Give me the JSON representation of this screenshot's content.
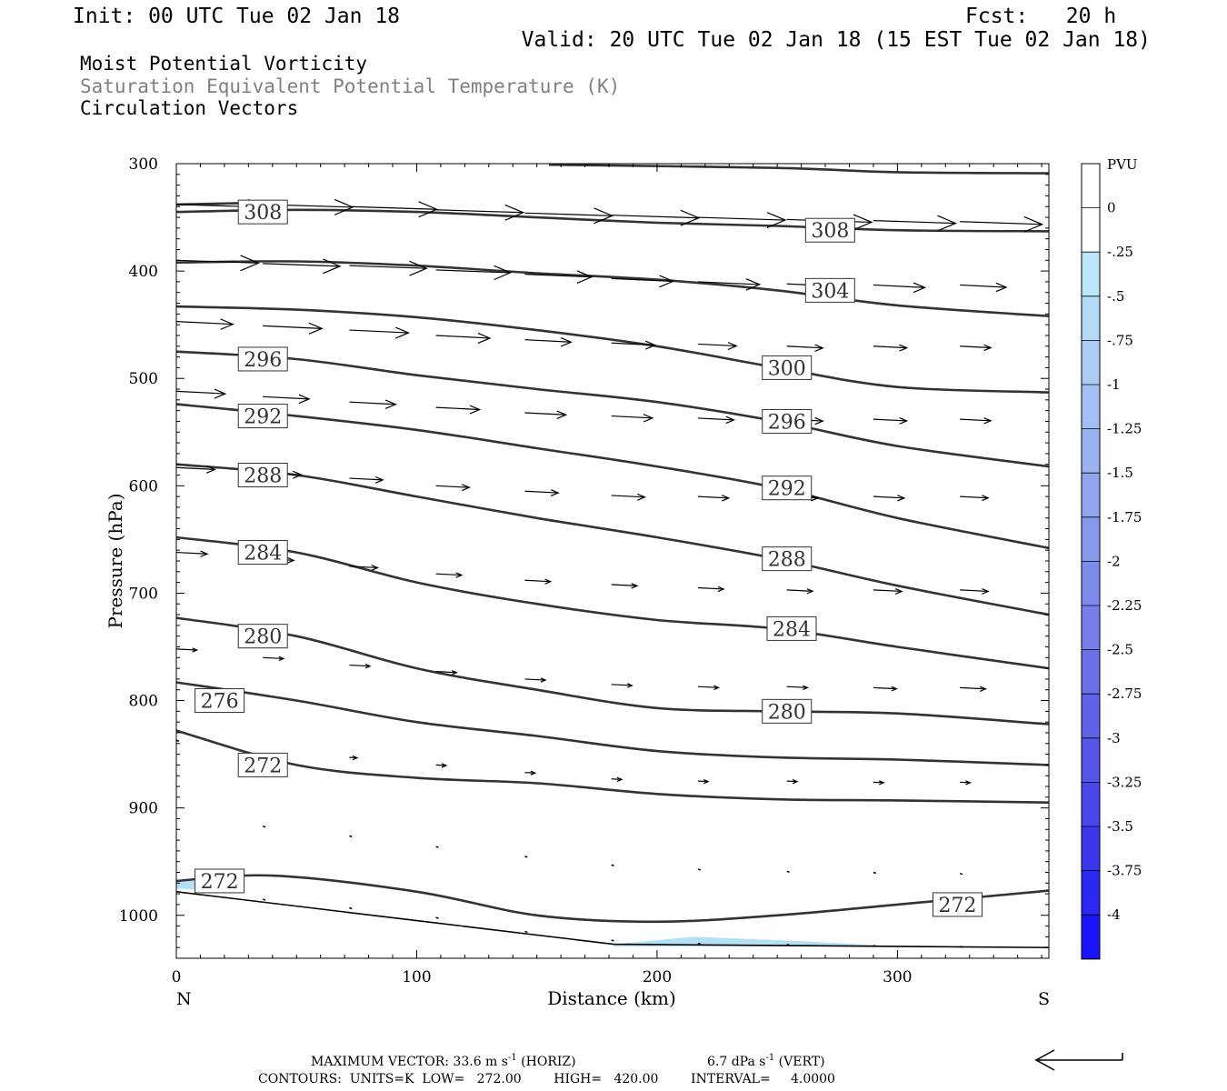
{
  "header": {
    "init": "Init: 00 UTC Tue 02 Jan 18",
    "fcst": "Fcst:   20 h",
    "valid": "Valid: 20 UTC Tue 02 Jan 18 (15 EST Tue 02 Jan 18)",
    "fields": [
      "Moist Potential Vorticity",
      "Saturation Equivalent Potential Temperature (K)",
      "Circulation Vectors"
    ]
  },
  "colors": {
    "contour": "#333333",
    "field_gray": "#808080",
    "light_blue": "#b3e0f7"
  },
  "footer": {
    "max_vector": "MAXIMUM VECTOR:  33.6 m s",
    "horiz": " (HORIZ)",
    "vert_val": "6.7 dPa s",
    "vert": " (VERT)",
    "neg1": "-1",
    "contours": "CONTOURS:  UNITS=K  LOW=   272.00        HIGH=   420.00        INTERVAL=     4.0000"
  },
  "chart_data": {
    "type": "contour",
    "xlabel": "Distance (km)",
    "ylabel": "Pressure (hPa)",
    "xlim": [
      0,
      363
    ],
    "ylim": [
      300,
      1040
    ],
    "x_ticks": [
      0,
      100,
      200,
      300
    ],
    "y_ticks": [
      300,
      400,
      500,
      600,
      700,
      800,
      900,
      1000
    ],
    "x_end_labels": [
      "N",
      "S"
    ],
    "colorbar": {
      "title": "PVU",
      "labels": [
        "0",
        "-.25",
        "-.5",
        "-.75",
        "-1",
        "-1.25",
        "-1.5",
        "-1.75",
        "-2",
        "-2.25",
        "-2.5",
        "-2.75",
        "-3",
        "-3.25",
        "-3.5",
        "-3.75",
        "-4"
      ],
      "colors": [
        "#ffffff",
        "#ffffff",
        "#bce6f9",
        "#b4d9f7",
        "#acccf5",
        "#a3bff3",
        "#9ab2f1",
        "#91a5ef",
        "#8898ed",
        "#7f8bec",
        "#767eea",
        "#6c70e9",
        "#6262e9",
        "#5755ea",
        "#4a46ec",
        "#3b37ef",
        "#2c28f2",
        "#1a15f8"
      ]
    },
    "terrain": [
      [
        0,
        978
      ],
      [
        182,
        1027
      ],
      [
        363,
        1030
      ]
    ],
    "contours": [
      {
        "label": "308",
        "points": [
          [
            0,
            345
          ],
          [
            50,
            343
          ],
          [
            100,
            345
          ],
          [
            150,
            350
          ],
          [
            200,
            355
          ],
          [
            250,
            358
          ],
          [
            300,
            362
          ],
          [
            363,
            363
          ]
        ],
        "label_at": [
          [
            36,
            345
          ],
          [
            272,
            362
          ]
        ]
      },
      {
        "label": "308",
        "points": [
          [
            0,
            338
          ],
          [
            45,
            336
          ]
        ]
      },
      {
        "label": "",
        "points": [
          [
            155,
            301
          ],
          [
            250,
            304
          ],
          [
            300,
            308
          ],
          [
            363,
            309
          ]
        ]
      },
      {
        "label": "304",
        "points": [
          [
            0,
            392
          ],
          [
            50,
            391
          ],
          [
            100,
            395
          ],
          [
            150,
            402
          ],
          [
            200,
            408
          ],
          [
            250,
            418
          ],
          [
            300,
            432
          ],
          [
            363,
            442
          ]
        ],
        "label_at": [
          [
            272,
            418
          ]
        ]
      },
      {
        "label": "300",
        "points": [
          [
            0,
            433
          ],
          [
            50,
            436
          ],
          [
            100,
            443
          ],
          [
            150,
            455
          ],
          [
            200,
            470
          ],
          [
            250,
            490
          ],
          [
            300,
            508
          ],
          [
            363,
            513
          ]
        ],
        "label_at": [
          [
            254,
            490
          ]
        ]
      },
      {
        "label": "296",
        "points": [
          [
            0,
            475
          ],
          [
            50,
            482
          ],
          [
            100,
            497
          ],
          [
            150,
            510
          ],
          [
            200,
            522
          ],
          [
            250,
            540
          ],
          [
            300,
            563
          ],
          [
            363,
            582
          ]
        ],
        "label_at": [
          [
            36,
            482
          ],
          [
            254,
            540
          ]
        ]
      },
      {
        "label": "292",
        "points": [
          [
            0,
            524
          ],
          [
            50,
            535
          ],
          [
            100,
            548
          ],
          [
            150,
            565
          ],
          [
            200,
            582
          ],
          [
            250,
            602
          ],
          [
            300,
            630
          ],
          [
            363,
            658
          ]
        ],
        "label_at": [
          [
            36,
            535
          ],
          [
            254,
            602
          ]
        ]
      },
      {
        "label": "288",
        "points": [
          [
            0,
            580
          ],
          [
            50,
            590
          ],
          [
            100,
            610
          ],
          [
            150,
            630
          ],
          [
            200,
            648
          ],
          [
            250,
            668
          ],
          [
            300,
            693
          ],
          [
            363,
            720
          ]
        ],
        "label_at": [
          [
            36,
            590
          ],
          [
            254,
            668
          ]
        ]
      },
      {
        "label": "284",
        "points": [
          [
            0,
            648
          ],
          [
            50,
            662
          ],
          [
            100,
            690
          ],
          [
            150,
            710
          ],
          [
            200,
            725
          ],
          [
            250,
            733
          ],
          [
            300,
            750
          ],
          [
            363,
            770
          ]
        ],
        "label_at": [
          [
            36,
            662
          ],
          [
            256,
            733
          ]
        ]
      },
      {
        "label": "280",
        "points": [
          [
            0,
            723
          ],
          [
            50,
            740
          ],
          [
            100,
            770
          ],
          [
            150,
            790
          ],
          [
            200,
            807
          ],
          [
            250,
            810
          ],
          [
            300,
            812
          ],
          [
            363,
            822
          ]
        ],
        "label_at": [
          [
            36,
            740
          ],
          [
            254,
            810
          ]
        ]
      },
      {
        "label": "276",
        "points": [
          [
            0,
            783
          ],
          [
            50,
            800
          ],
          [
            100,
            820
          ],
          [
            150,
            833
          ],
          [
            200,
            847
          ],
          [
            250,
            853
          ],
          [
            300,
            855
          ],
          [
            363,
            860
          ]
        ],
        "label_at": [
          [
            18,
            800
          ]
        ]
      },
      {
        "label": "272",
        "points": [
          [
            0,
            828
          ],
          [
            50,
            860
          ],
          [
            100,
            872
          ],
          [
            150,
            877
          ],
          [
            200,
            887
          ],
          [
            250,
            892
          ],
          [
            300,
            893
          ],
          [
            363,
            895
          ]
        ],
        "label_at": [
          [
            36,
            860
          ]
        ]
      },
      {
        "label": "272",
        "points": [
          [
            0,
            968
          ],
          [
            40,
            963
          ],
          [
            100,
            978
          ],
          [
            150,
            1000
          ],
          [
            200,
            1006
          ],
          [
            250,
            1000
          ],
          [
            300,
            990
          ],
          [
            363,
            977
          ]
        ],
        "label_at": [
          [
            18,
            968
          ],
          [
            325,
            990
          ]
        ]
      }
    ],
    "shaded_regions": [
      {
        "value": "-.25 to -.5",
        "points": [
          [
            0,
            967
          ],
          [
            20,
            970
          ],
          [
            25,
            978
          ],
          [
            0,
            975
          ]
        ]
      },
      {
        "value": "-.25 to -.5",
        "points": [
          [
            182,
            1027
          ],
          [
            215,
            1020
          ],
          [
            260,
            1024
          ],
          [
            300,
            1029
          ],
          [
            182,
            1029
          ]
        ]
      }
    ],
    "vector_scale_ms": 33.6,
    "vectors": [
      {
        "x": 0,
        "p": 338,
        "u": 35
      },
      {
        "x": 36,
        "p": 338,
        "u": 35
      },
      {
        "x": 72,
        "p": 340,
        "u": 34
      },
      {
        "x": 108,
        "p": 343,
        "u": 34
      },
      {
        "x": 145,
        "p": 346,
        "u": 34
      },
      {
        "x": 181,
        "p": 348,
        "u": 34
      },
      {
        "x": 217,
        "p": 350,
        "u": 34
      },
      {
        "x": 254,
        "p": 352,
        "u": 33
      },
      {
        "x": 290,
        "p": 353,
        "u": 32
      },
      {
        "x": 326,
        "p": 354,
        "u": 32
      },
      {
        "x": 0,
        "p": 390,
        "u": 32
      },
      {
        "x": 36,
        "p": 393,
        "u": 30
      },
      {
        "x": 72,
        "p": 395,
        "u": 30
      },
      {
        "x": 108,
        "p": 399,
        "u": 29
      },
      {
        "x": 145,
        "p": 403,
        "u": 26
      },
      {
        "x": 181,
        "p": 407,
        "u": 24
      },
      {
        "x": 217,
        "p": 410,
        "u": 24
      },
      {
        "x": 254,
        "p": 412,
        "u": 23
      },
      {
        "x": 290,
        "p": 413,
        "u": 20
      },
      {
        "x": 326,
        "p": 413,
        "u": 18
      },
      {
        "x": 0,
        "p": 447,
        "u": 22
      },
      {
        "x": 36,
        "p": 451,
        "u": 23
      },
      {
        "x": 72,
        "p": 455,
        "u": 23
      },
      {
        "x": 108,
        "p": 460,
        "u": 21
      },
      {
        "x": 145,
        "p": 464,
        "u": 18
      },
      {
        "x": 181,
        "p": 467,
        "u": 17
      },
      {
        "x": 217,
        "p": 468,
        "u": 15
      },
      {
        "x": 254,
        "p": 470,
        "u": 14
      },
      {
        "x": 290,
        "p": 470,
        "u": 13
      },
      {
        "x": 326,
        "p": 470,
        "u": 12
      },
      {
        "x": 0,
        "p": 512,
        "u": 19
      },
      {
        "x": 36,
        "p": 517,
        "u": 18
      },
      {
        "x": 72,
        "p": 522,
        "u": 18
      },
      {
        "x": 108,
        "p": 527,
        "u": 17
      },
      {
        "x": 145,
        "p": 532,
        "u": 16
      },
      {
        "x": 181,
        "p": 535,
        "u": 16
      },
      {
        "x": 217,
        "p": 537,
        "u": 14
      },
      {
        "x": 254,
        "p": 538,
        "u": 14
      },
      {
        "x": 290,
        "p": 538,
        "u": 13
      },
      {
        "x": 326,
        "p": 538,
        "u": 12
      },
      {
        "x": 0,
        "p": 583,
        "u": 15
      },
      {
        "x": 36,
        "p": 588,
        "u": 15
      },
      {
        "x": 72,
        "p": 593,
        "u": 13
      },
      {
        "x": 108,
        "p": 600,
        "u": 13
      },
      {
        "x": 145,
        "p": 605,
        "u": 13
      },
      {
        "x": 181,
        "p": 609,
        "u": 13
      },
      {
        "x": 217,
        "p": 610,
        "u": 12
      },
      {
        "x": 254,
        "p": 610,
        "u": 12
      },
      {
        "x": 290,
        "p": 610,
        "u": 12
      },
      {
        "x": 326,
        "p": 610,
        "u": 11
      },
      {
        "x": 0,
        "p": 662,
        "u": 12
      },
      {
        "x": 36,
        "p": 668,
        "u": 12
      },
      {
        "x": 72,
        "p": 675,
        "u": 11
      },
      {
        "x": 108,
        "p": 682,
        "u": 10
      },
      {
        "x": 145,
        "p": 688,
        "u": 10
      },
      {
        "x": 181,
        "p": 692,
        "u": 10
      },
      {
        "x": 217,
        "p": 695,
        "u": 10
      },
      {
        "x": 254,
        "p": 697,
        "u": 10
      },
      {
        "x": 290,
        "p": 697,
        "u": 11
      },
      {
        "x": 326,
        "p": 697,
        "u": 11
      },
      {
        "x": 0,
        "p": 752,
        "u": 8
      },
      {
        "x": 36,
        "p": 760,
        "u": 8
      },
      {
        "x": 72,
        "p": 767,
        "u": 8
      },
      {
        "x": 108,
        "p": 773,
        "u": 8
      },
      {
        "x": 145,
        "p": 780,
        "u": 8
      },
      {
        "x": 181,
        "p": 785,
        "u": 8
      },
      {
        "x": 217,
        "p": 787,
        "u": 8
      },
      {
        "x": 254,
        "p": 787,
        "u": 8
      },
      {
        "x": 290,
        "p": 788,
        "u": 9
      },
      {
        "x": 326,
        "p": 788,
        "u": 10
      },
      {
        "x": 0,
        "p": 837,
        "u": 1
      },
      {
        "x": 72,
        "p": 853,
        "u": 3
      },
      {
        "x": 108,
        "p": 860,
        "u": 4
      },
      {
        "x": 145,
        "p": 867,
        "u": 4
      },
      {
        "x": 181,
        "p": 873,
        "u": 4
      },
      {
        "x": 217,
        "p": 875,
        "u": 4
      },
      {
        "x": 254,
        "p": 875,
        "u": 4
      },
      {
        "x": 290,
        "p": 876,
        "u": 4
      },
      {
        "x": 326,
        "p": 876,
        "u": 4
      },
      {
        "x": 36,
        "p": 917,
        "u": 1
      },
      {
        "x": 72,
        "p": 926,
        "u": 1
      },
      {
        "x": 108,
        "p": 936,
        "u": 1
      },
      {
        "x": 145,
        "p": 945,
        "u": 1
      },
      {
        "x": 181,
        "p": 953,
        "u": 1
      },
      {
        "x": 217,
        "p": 957,
        "u": 1
      },
      {
        "x": 254,
        "p": 959,
        "u": 1
      },
      {
        "x": 290,
        "p": 960,
        "u": 1
      },
      {
        "x": 326,
        "p": 961,
        "u": 1
      },
      {
        "x": 36,
        "p": 985,
        "u": 1
      },
      {
        "x": 72,
        "p": 993,
        "u": 1
      },
      {
        "x": 108,
        "p": 1002,
        "u": 1
      },
      {
        "x": 145,
        "p": 1015,
        "u": 1
      },
      {
        "x": 181,
        "p": 1023,
        "u": 1
      },
      {
        "x": 217,
        "p": 1026,
        "u": 1
      },
      {
        "x": 254,
        "p": 1027,
        "u": 1
      },
      {
        "x": 290,
        "p": 1028,
        "u": 1
      },
      {
        "x": 326,
        "p": 1029,
        "u": 1
      }
    ]
  }
}
